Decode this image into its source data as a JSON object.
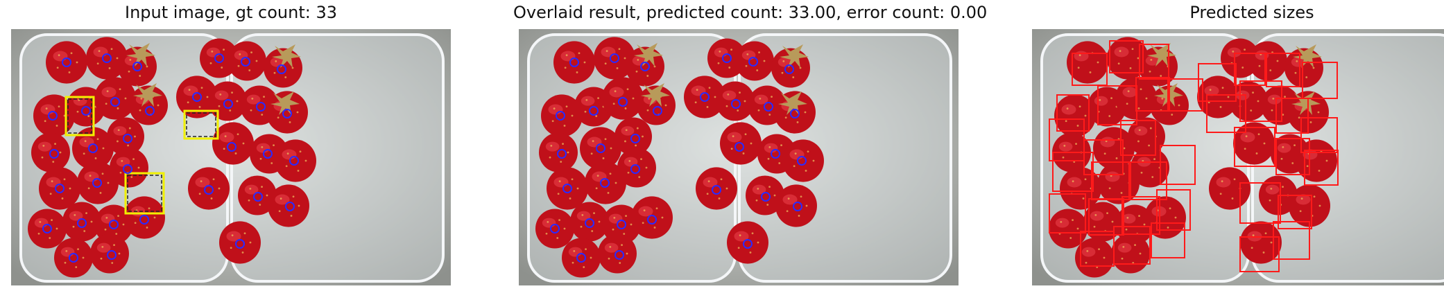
{
  "panels": [
    {
      "title": "Input image, gt count: 33",
      "show_points": true,
      "show_exemplars": true,
      "show_boxes": false
    },
    {
      "title": "Overlaid result, predicted count: 33.00, error count: 0.00",
      "show_points": true,
      "show_exemplars": false,
      "show_boxes": false
    },
    {
      "title": "Predicted sizes",
      "show_points": false,
      "show_exemplars": false,
      "show_boxes": true
    }
  ],
  "colors": {
    "background": "#c9ccc7",
    "tray": "#d8dde0",
    "strawberry": "#c0101a",
    "strawberry_highlight": "#e8404a",
    "seed": "#f0c060",
    "calyx": "#b89a5a",
    "point_marker": "#2a2aff",
    "exemplar_box": "#f0f000",
    "size_box": "#ff1a1a"
  }
}
